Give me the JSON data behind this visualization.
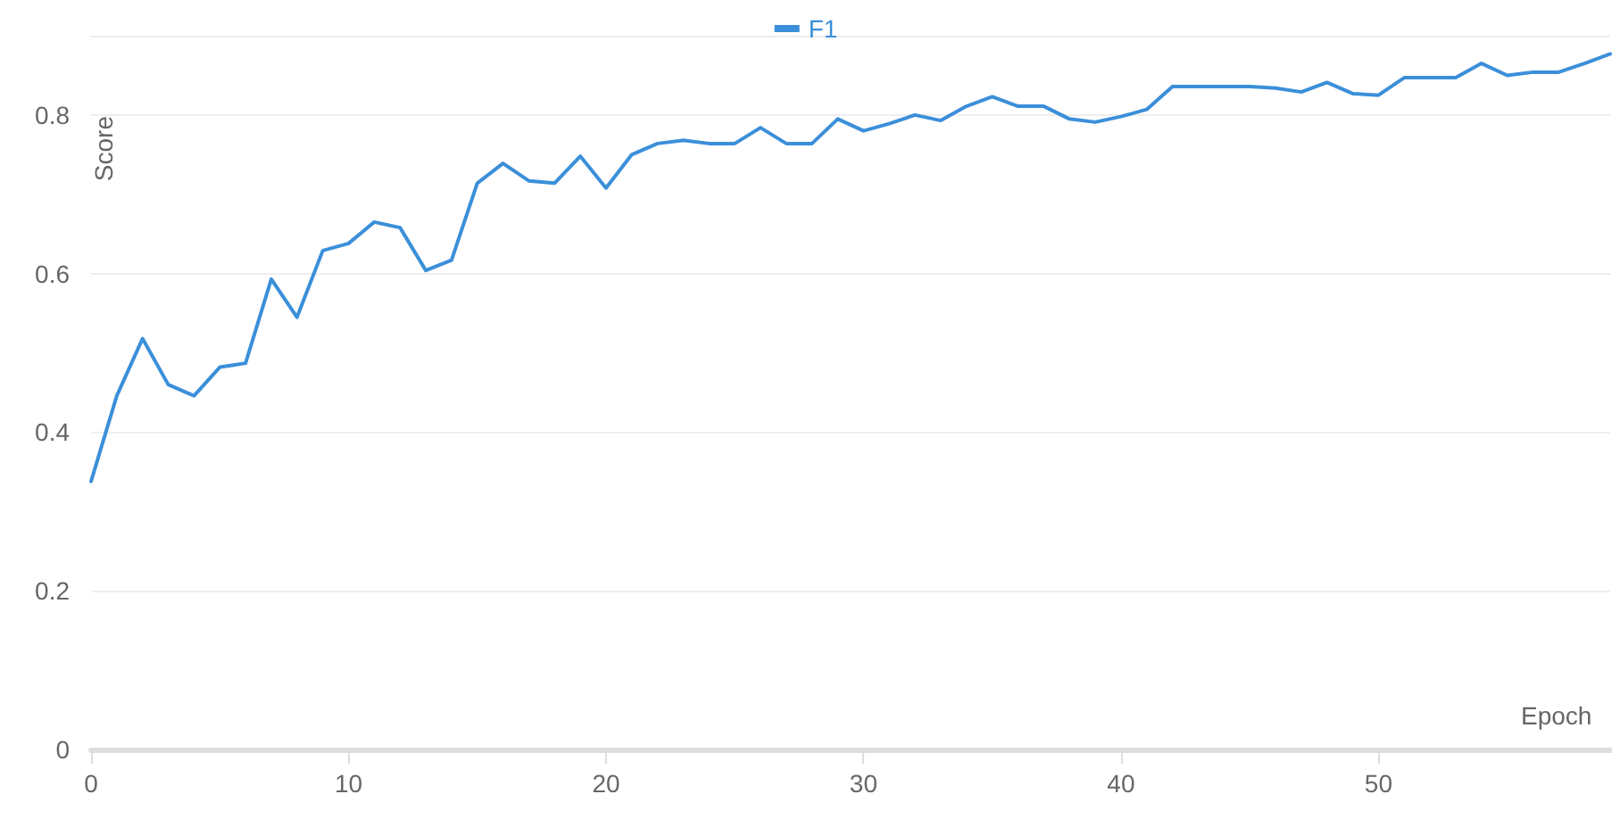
{
  "chart_data": {
    "type": "line",
    "xlabel": "Epoch",
    "ylabel": "Score",
    "x": [
      0,
      1,
      2,
      3,
      4,
      5,
      6,
      7,
      8,
      9,
      10,
      11,
      12,
      13,
      14,
      15,
      16,
      17,
      18,
      19,
      20,
      21,
      22,
      23,
      24,
      25,
      26,
      27,
      28,
      29,
      30,
      31,
      32,
      33,
      34,
      35,
      36,
      37,
      38,
      39,
      40,
      41,
      42,
      43,
      44,
      45,
      46,
      47,
      48,
      49,
      50,
      51,
      52,
      53,
      54,
      55,
      56,
      57,
      58,
      59
    ],
    "series": [
      {
        "name": "F1",
        "color": "#3b8fd9",
        "values": [
          0.338,
          0.446,
          0.518,
          0.46,
          0.446,
          0.482,
          0.487,
          0.593,
          0.545,
          0.629,
          0.638,
          0.665,
          0.658,
          0.604,
          0.617,
          0.714,
          0.739,
          0.717,
          0.714,
          0.748,
          0.708,
          0.75,
          0.764,
          0.768,
          0.764,
          0.764,
          0.784,
          0.764,
          0.764,
          0.795,
          0.78,
          0.789,
          0.8,
          0.793,
          0.811,
          0.823,
          0.811,
          0.811,
          0.795,
          0.791,
          0.798,
          0.807,
          0.836,
          0.836,
          0.836,
          0.836,
          0.834,
          0.829,
          0.841,
          0.827,
          0.825,
          0.847,
          0.847,
          0.847,
          0.865,
          0.85,
          0.854,
          0.854,
          0.865,
          0.877
        ]
      }
    ],
    "xlim": [
      0,
      59
    ],
    "xticks": [
      0,
      10,
      20,
      30,
      40,
      50
    ],
    "ylim": [
      0,
      0.9
    ],
    "yticks": [
      0,
      0.2,
      0.4,
      0.6,
      0.8
    ],
    "grid": "y",
    "legend": "top",
    "marker": "none",
    "line_style": "solid"
  }
}
